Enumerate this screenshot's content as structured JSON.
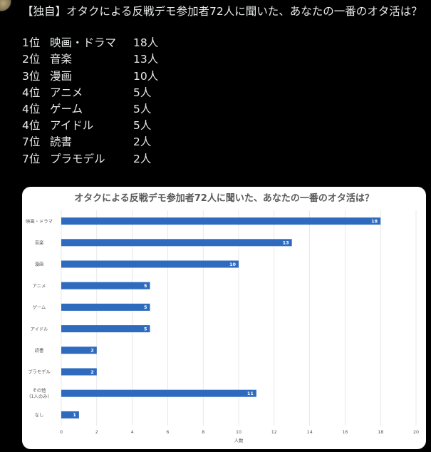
{
  "post": {
    "title": "【独自】オタクによる反戦デモ参加者72人に聞いた、あなたの一番のオタ活は？",
    "ranking": [
      {
        "position": "1位",
        "item": "映画・ドラマ",
        "count": "18人"
      },
      {
        "position": "2位",
        "item": "音楽",
        "count": "13人"
      },
      {
        "position": "3位",
        "item": "漫画",
        "count": "10人"
      },
      {
        "position": "4位",
        "item": "アニメ",
        "count": "5人"
      },
      {
        "position": "4位",
        "item": "ゲーム",
        "count": "5人"
      },
      {
        "position": "4位",
        "item": "アイドル",
        "count": "5人"
      },
      {
        "position": "7位",
        "item": "読書",
        "count": "2人"
      },
      {
        "position": "7位",
        "item": "プラモデル",
        "count": "2人"
      }
    ]
  },
  "colors": {
    "background": "#000000",
    "text": "#e7e9ea",
    "bar": "#2e6bbf",
    "card": "#ffffff",
    "chart_text": "#595959",
    "gridline": "#d9d9d9"
  },
  "chart_data": {
    "type": "bar",
    "orientation": "horizontal",
    "title": "オタクによる反戦デモ参加者72人に聞いた、あなたの一番のオタ活は？",
    "categories": [
      "映画・ドラマ",
      "音楽",
      "漫画",
      "アニメ",
      "ゲーム",
      "アイドル",
      "読書",
      "プラモデル",
      [
        "その他",
        "(1人のみ)"
      ],
      "なし"
    ],
    "values": [
      18,
      13,
      10,
      5,
      5,
      5,
      2,
      2,
      11,
      1
    ],
    "xlabel": "人数",
    "ylabel": "",
    "xlim": [
      0,
      20
    ],
    "xticks": [
      0,
      2,
      4,
      6,
      8,
      10,
      12,
      14,
      16,
      18,
      20
    ],
    "grid": true,
    "legend": "none",
    "data_labels": true
  }
}
